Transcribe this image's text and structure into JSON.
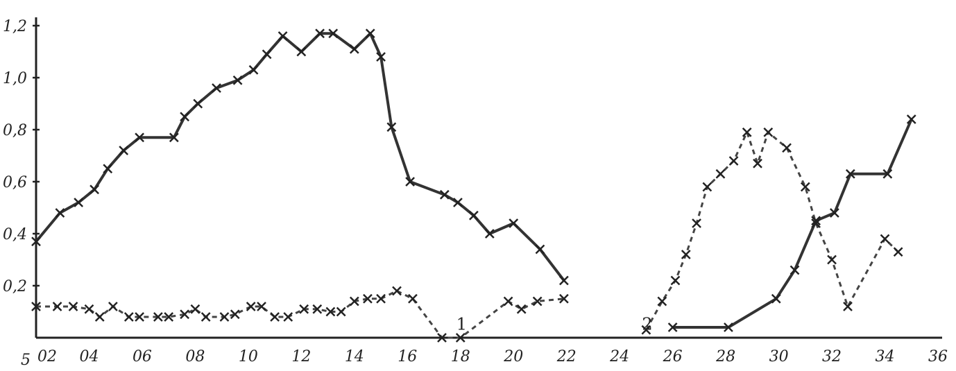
{
  "chart_data": {
    "type": "line",
    "title": "",
    "xlabel": "",
    "ylabel": "",
    "xlim": [
      2,
      36
    ],
    "ylim": [
      0,
      1.2
    ],
    "grid": false,
    "x_origin_label": "5",
    "x_tick_labels": [
      "02",
      "04",
      "06",
      "08",
      "10",
      "12",
      "14",
      "16",
      "18",
      "20",
      "22",
      "24",
      "26",
      "28",
      "30",
      "32",
      "34",
      "36"
    ],
    "x_tick_values": [
      2,
      4,
      6,
      8,
      10,
      12,
      14,
      16,
      18,
      20,
      22,
      24,
      26,
      28,
      30,
      32,
      34,
      36
    ],
    "y_tick_labels": [
      "0,2",
      "0,4",
      "0,6",
      "0,8",
      "1,0",
      "1,2"
    ],
    "y_tick_values": [
      0.2,
      0.4,
      0.6,
      0.8,
      1.0,
      1.2
    ],
    "series_labels": [
      {
        "text": "1",
        "x": 18,
        "y": 0.02
      },
      {
        "text": "2",
        "x": 25,
        "y": 0.02
      }
    ],
    "series": [
      {
        "style": "solid",
        "segments": [
          {
            "x": [
              2.0,
              2.9,
              3.6,
              4.2,
              4.7,
              5.3,
              5.9,
              7.2,
              7.6,
              8.1,
              8.8,
              9.6,
              10.2,
              10.7,
              11.3,
              12.0,
              12.7,
              13.2,
              14.0,
              14.6,
              15.0,
              15.4,
              16.1,
              17.4,
              17.9,
              18.5,
              19.1,
              20.0,
              21.0,
              21.9
            ],
            "y": [
              0.37,
              0.48,
              0.52,
              0.57,
              0.65,
              0.72,
              0.77,
              0.77,
              0.85,
              0.9,
              0.96,
              0.99,
              1.03,
              1.09,
              1.16,
              1.1,
              1.17,
              1.17,
              1.11,
              1.17,
              1.08,
              0.81,
              0.6,
              0.55,
              0.52,
              0.47,
              0.4,
              0.44,
              0.34,
              0.22
            ]
          },
          {
            "x": [
              26.0,
              28.1,
              29.9,
              30.6,
              31.4,
              32.1,
              32.7,
              34.1,
              35.0
            ],
            "y": [
              0.04,
              0.04,
              0.15,
              0.26,
              0.45,
              0.48,
              0.63,
              0.63,
              0.84
            ]
          }
        ]
      },
      {
        "style": "dashed",
        "segments": [
          {
            "x": [
              2.0,
              2.8,
              3.4,
              4.0,
              4.4,
              4.9,
              5.5,
              5.9,
              6.6,
              7.0,
              7.6,
              8.0,
              8.4,
              9.1,
              9.5,
              10.1,
              10.5,
              11.0,
              11.5,
              12.1,
              12.6,
              13.1,
              13.5,
              14.0,
              14.5,
              15.0,
              15.6,
              16.2,
              17.3,
              18.0,
              19.8,
              20.3,
              20.9,
              21.9
            ],
            "y": [
              0.12,
              0.12,
              0.12,
              0.11,
              0.08,
              0.12,
              0.08,
              0.08,
              0.08,
              0.08,
              0.09,
              0.11,
              0.08,
              0.08,
              0.09,
              0.12,
              0.12,
              0.08,
              0.08,
              0.11,
              0.11,
              0.1,
              0.1,
              0.14,
              0.15,
              0.15,
              0.18,
              0.15,
              0.0,
              0.0,
              0.14,
              0.11,
              0.14,
              0.15
            ]
          },
          {
            "x": [
              25.0,
              25.6,
              26.1,
              26.5,
              26.9,
              27.3,
              27.8,
              28.3,
              28.8,
              29.2,
              29.6,
              30.3,
              31.0,
              31.4,
              32.0,
              32.6,
              34.0,
              34.5
            ],
            "y": [
              0.03,
              0.14,
              0.22,
              0.32,
              0.44,
              0.58,
              0.63,
              0.68,
              0.79,
              0.67,
              0.79,
              0.73,
              0.58,
              0.44,
              0.3,
              0.12,
              0.38,
              0.33
            ]
          }
        ]
      }
    ]
  }
}
